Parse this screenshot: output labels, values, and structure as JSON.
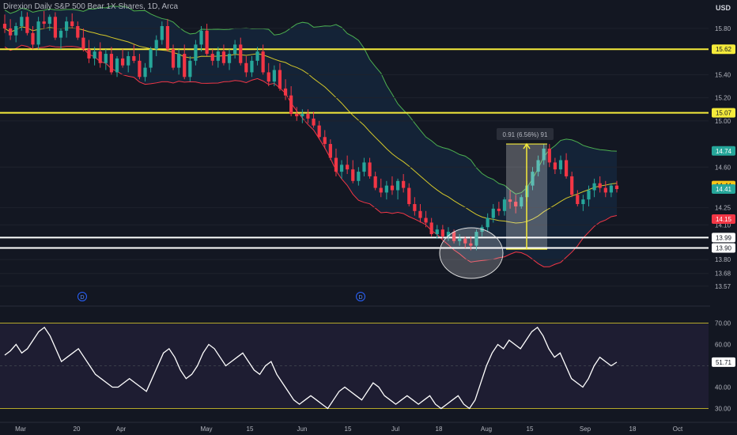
{
  "header": {
    "title": "Direxion Daily S&P 500 Bear 1X Shares, 1D, Arca",
    "currency": "USD"
  },
  "colors": {
    "up": "#26a69a",
    "down": "#f23645",
    "bg": "#131722",
    "yellow": "#f5eb3b",
    "white": "#ffffff",
    "rsi": "#ffffff"
  },
  "chart_data": {
    "type": "candlestick",
    "price_axis": {
      "min": 13.5,
      "max": 15.95,
      "ticks": [
        "15.80",
        "15.40",
        "15.20",
        "15.00",
        "14.60",
        "14.25",
        "14.10",
        "13.80",
        "13.68",
        "13.57"
      ]
    },
    "x_axis": {
      "labels": [
        "Mar",
        "20",
        "Apr",
        "May",
        "15",
        "Jun",
        "15",
        "Jul",
        "18",
        "Aug",
        "15",
        "Sep",
        "18",
        "Oct"
      ]
    },
    "levels": [
      {
        "value": 15.62,
        "label": "15.62",
        "color": "#f5eb3b"
      },
      {
        "value": 15.07,
        "label": "15.07",
        "color": "#f5eb3b"
      },
      {
        "value": 13.99,
        "label": "13.99",
        "color": "#ffffff"
      },
      {
        "value": 13.9,
        "label": "13.90",
        "color": "#ffffff"
      }
    ],
    "price_tags": [
      {
        "value": 14.74,
        "label": "14.74",
        "color": "#26a69a"
      },
      {
        "value": 14.44,
        "label": "14.44",
        "color": "#f5c518"
      },
      {
        "value": 14.41,
        "label": "14.41",
        "color": "#26a69a"
      },
      {
        "value": 14.15,
        "label": "14.15",
        "color": "#f23645"
      }
    ],
    "measure": {
      "label": "0.91 (6.56%) 91",
      "from": 13.89,
      "to": 14.8
    },
    "dividend_markers": [
      "D",
      "D"
    ],
    "candles": [
      [
        15.84,
        15.92,
        15.76,
        15.8
      ],
      [
        15.8,
        15.88,
        15.7,
        15.74
      ],
      [
        15.74,
        15.85,
        15.68,
        15.82
      ],
      [
        15.82,
        15.95,
        15.78,
        15.9
      ],
      [
        15.9,
        15.94,
        15.74,
        15.76
      ],
      [
        15.76,
        15.82,
        15.62,
        15.66
      ],
      [
        15.66,
        15.9,
        15.62,
        15.86
      ],
      [
        15.86,
        15.95,
        15.8,
        15.84
      ],
      [
        15.84,
        15.92,
        15.78,
        15.9
      ],
      [
        15.9,
        15.94,
        15.7,
        15.72
      ],
      [
        15.72,
        15.8,
        15.62,
        15.78
      ],
      [
        15.78,
        15.9,
        15.72,
        15.86
      ],
      [
        15.86,
        15.93,
        15.8,
        15.82
      ],
      [
        15.82,
        15.86,
        15.7,
        15.72
      ],
      [
        15.72,
        15.8,
        15.6,
        15.62
      ],
      [
        15.62,
        15.7,
        15.5,
        15.54
      ],
      [
        15.54,
        15.64,
        15.48,
        15.6
      ],
      [
        15.6,
        15.68,
        15.46,
        15.5
      ],
      [
        15.5,
        15.62,
        15.44,
        15.58
      ],
      [
        15.58,
        15.64,
        15.4,
        15.42
      ],
      [
        15.42,
        15.56,
        15.38,
        15.54
      ],
      [
        15.54,
        15.62,
        15.46,
        15.48
      ],
      [
        15.48,
        15.6,
        15.42,
        15.56
      ],
      [
        15.56,
        15.66,
        15.5,
        15.52
      ],
      [
        15.52,
        15.58,
        15.36,
        15.38
      ],
      [
        15.38,
        15.5,
        15.34,
        15.46
      ],
      [
        15.46,
        15.64,
        15.42,
        15.62
      ],
      [
        15.62,
        15.74,
        15.56,
        15.7
      ],
      [
        15.7,
        15.86,
        15.66,
        15.82
      ],
      [
        15.82,
        15.88,
        15.6,
        15.62
      ],
      [
        15.62,
        15.66,
        15.44,
        15.46
      ],
      [
        15.46,
        15.62,
        15.4,
        15.58
      ],
      [
        15.58,
        15.66,
        15.36,
        15.38
      ],
      [
        15.38,
        15.56,
        15.34,
        15.52
      ],
      [
        15.52,
        15.7,
        15.48,
        15.66
      ],
      [
        15.66,
        15.82,
        15.6,
        15.78
      ],
      [
        15.78,
        15.84,
        15.56,
        15.58
      ],
      [
        15.58,
        15.62,
        15.48,
        15.52
      ],
      [
        15.52,
        15.64,
        15.46,
        15.6
      ],
      [
        15.6,
        15.66,
        15.48,
        15.5
      ],
      [
        15.5,
        15.62,
        15.44,
        15.58
      ],
      [
        15.58,
        15.7,
        15.54,
        15.66
      ],
      [
        15.66,
        15.72,
        15.48,
        15.5
      ],
      [
        15.5,
        15.56,
        15.38,
        15.42
      ],
      [
        15.42,
        15.56,
        15.38,
        15.52
      ],
      [
        15.52,
        15.64,
        15.48,
        15.6
      ],
      [
        15.6,
        15.66,
        15.4,
        15.42
      ],
      [
        15.42,
        15.5,
        15.3,
        15.34
      ],
      [
        15.34,
        15.48,
        15.3,
        15.44
      ],
      [
        15.44,
        15.5,
        15.26,
        15.28
      ],
      [
        15.28,
        15.36,
        15.18,
        15.22
      ],
      [
        15.22,
        15.3,
        15.04,
        15.06
      ],
      [
        15.06,
        15.12,
        15.0,
        15.04
      ],
      [
        15.04,
        15.1,
        14.98,
        15.06
      ],
      [
        15.06,
        15.1,
        14.98,
        15.02
      ],
      [
        15.02,
        15.08,
        14.94,
        14.96
      ],
      [
        14.96,
        15.0,
        14.84,
        14.86
      ],
      [
        14.86,
        14.92,
        14.76,
        14.8
      ],
      [
        14.8,
        14.84,
        14.66,
        14.68
      ],
      [
        14.68,
        14.76,
        14.52,
        14.56
      ],
      [
        14.56,
        14.66,
        14.5,
        14.62
      ],
      [
        14.62,
        14.7,
        14.54,
        14.58
      ],
      [
        14.58,
        14.66,
        14.46,
        14.48
      ],
      [
        14.48,
        14.6,
        14.44,
        14.56
      ],
      [
        14.56,
        14.68,
        14.52,
        14.64
      ],
      [
        14.64,
        14.68,
        14.5,
        14.52
      ],
      [
        14.52,
        14.56,
        14.4,
        14.42
      ],
      [
        14.42,
        14.5,
        14.34,
        14.38
      ],
      [
        14.38,
        14.48,
        14.32,
        14.44
      ],
      [
        14.44,
        14.52,
        14.36,
        14.4
      ],
      [
        14.4,
        14.5,
        14.32,
        14.48
      ],
      [
        14.48,
        14.54,
        14.38,
        14.42
      ],
      [
        14.42,
        14.46,
        14.26,
        14.28
      ],
      [
        14.28,
        14.34,
        14.18,
        14.22
      ],
      [
        14.22,
        14.28,
        14.12,
        14.16
      ],
      [
        14.16,
        14.22,
        14.08,
        14.12
      ],
      [
        14.12,
        14.16,
        14.0,
        14.02
      ],
      [
        14.02,
        14.1,
        13.98,
        14.06
      ],
      [
        14.06,
        14.1,
        13.98,
        14.0
      ],
      [
        14.0,
        14.08,
        13.96,
        14.04
      ],
      [
        14.04,
        14.06,
        13.94,
        13.96
      ],
      [
        13.96,
        14.02,
        13.92,
        13.98
      ],
      [
        13.98,
        14.0,
        13.9,
        13.94
      ],
      [
        13.94,
        14.0,
        13.88,
        13.92
      ],
      [
        13.92,
        14.06,
        13.88,
        14.04
      ],
      [
        14.04,
        14.1,
        14.0,
        14.08
      ],
      [
        14.08,
        14.2,
        14.04,
        14.16
      ],
      [
        14.16,
        14.28,
        14.12,
        14.24
      ],
      [
        14.24,
        14.3,
        14.18,
        14.22
      ],
      [
        14.22,
        14.34,
        14.18,
        14.32
      ],
      [
        14.32,
        14.4,
        14.24,
        14.3
      ],
      [
        14.3,
        14.36,
        14.2,
        14.26
      ],
      [
        14.26,
        14.36,
        14.24,
        14.34
      ],
      [
        14.34,
        14.48,
        14.3,
        14.44
      ],
      [
        14.44,
        14.6,
        14.4,
        14.56
      ],
      [
        14.56,
        14.7,
        14.52,
        14.66
      ],
      [
        14.66,
        14.8,
        14.62,
        14.76
      ],
      [
        14.76,
        14.8,
        14.6,
        14.64
      ],
      [
        14.64,
        14.68,
        14.54,
        14.58
      ],
      [
        14.58,
        14.7,
        14.54,
        14.66
      ],
      [
        14.66,
        14.72,
        14.5,
        14.52
      ],
      [
        14.52,
        14.56,
        14.34,
        14.36
      ],
      [
        14.36,
        14.4,
        14.26,
        14.28
      ],
      [
        14.28,
        14.36,
        14.22,
        14.32
      ],
      [
        14.32,
        14.44,
        14.26,
        14.4
      ],
      [
        14.4,
        14.5,
        14.34,
        14.46
      ],
      [
        14.46,
        14.52,
        14.38,
        14.42
      ],
      [
        14.42,
        14.48,
        14.34,
        14.38
      ],
      [
        14.38,
        14.46,
        14.34,
        14.44
      ],
      [
        14.44,
        14.48,
        14.38,
        14.41
      ]
    ],
    "rsi": {
      "axis": {
        "min": 25,
        "max": 75,
        "ticks": [
          "70.00",
          "60.00",
          "40.00",
          "30.00"
        ]
      },
      "bands": [
        70,
        30
      ],
      "current": "51.71",
      "values": [
        55,
        57,
        60,
        56,
        58,
        62,
        66,
        68,
        64,
        58,
        52,
        54,
        56,
        58,
        54,
        50,
        46,
        44,
        42,
        40,
        40,
        42,
        44,
        42,
        40,
        38,
        44,
        50,
        56,
        58,
        54,
        48,
        44,
        46,
        50,
        56,
        60,
        58,
        54,
        50,
        52,
        54,
        56,
        52,
        48,
        46,
        50,
        52,
        46,
        42,
        38,
        34,
        32,
        34,
        36,
        34,
        32,
        30,
        34,
        38,
        40,
        38,
        36,
        34,
        38,
        42,
        40,
        36,
        34,
        32,
        34,
        36,
        34,
        32,
        34,
        36,
        32,
        30,
        32,
        34,
        36,
        32,
        30,
        34,
        42,
        50,
        56,
        60,
        58,
        62,
        60,
        58,
        62,
        66,
        68,
        64,
        58,
        54,
        56,
        50,
        44,
        42,
        40,
        44,
        50,
        54,
        52,
        50,
        51.71
      ]
    }
  }
}
